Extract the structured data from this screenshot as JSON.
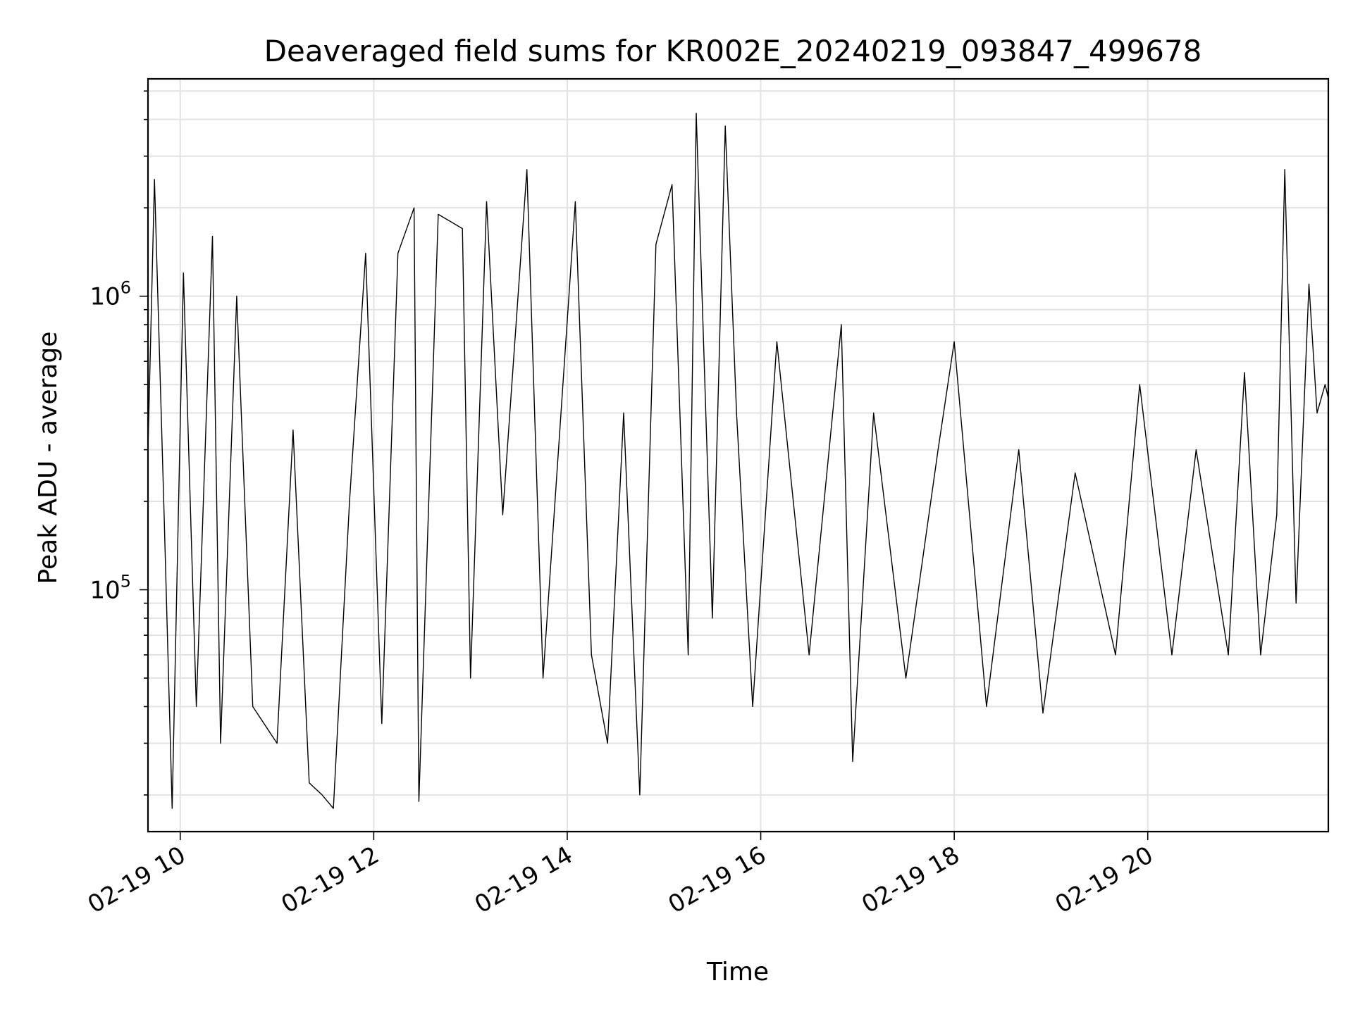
{
  "chart_data": {
    "type": "line",
    "title": "Deaveraged field sums for KR002E_20240219_093847_499678",
    "xlabel": "Time",
    "ylabel": "Peak ADU - average",
    "x_range": [
      "2024-02-19 09:40",
      "2024-02-19 21:52"
    ],
    "y_range": [
      15000,
      5500000
    ],
    "y_scale": "log",
    "grid": true,
    "line_color": "#000000",
    "x_ticks": [
      {
        "value": "2024-02-19 10:00",
        "label": "02-19 10"
      },
      {
        "value": "2024-02-19 12:00",
        "label": "02-19 12"
      },
      {
        "value": "2024-02-19 14:00",
        "label": "02-19 14"
      },
      {
        "value": "2024-02-19 16:00",
        "label": "02-19 16"
      },
      {
        "value": "2024-02-19 18:00",
        "label": "02-19 18"
      },
      {
        "value": "2024-02-19 20:00",
        "label": "02-19 20"
      }
    ],
    "y_ticks": [
      {
        "value": 100000,
        "base": "10",
        "exp": "5"
      },
      {
        "value": 1000000,
        "base": "10",
        "exp": "6"
      }
    ],
    "series": [
      {
        "points": [
          [
            "2024-02-19 09:40",
            300000
          ],
          [
            "2024-02-19 09:44",
            2500000
          ],
          [
            "2024-02-19 09:50",
            180000
          ],
          [
            "2024-02-19 09:55",
            18000
          ],
          [
            "2024-02-19 10:02",
            1200000
          ],
          [
            "2024-02-19 10:10",
            40000
          ],
          [
            "2024-02-19 10:20",
            1600000
          ],
          [
            "2024-02-19 10:25",
            30000
          ],
          [
            "2024-02-19 10:35",
            1000000
          ],
          [
            "2024-02-19 10:45",
            40000
          ],
          [
            "2024-02-19 11:00",
            30000
          ],
          [
            "2024-02-19 11:10",
            350000
          ],
          [
            "2024-02-19 11:20",
            22000
          ],
          [
            "2024-02-19 11:28",
            20000
          ],
          [
            "2024-02-19 11:35",
            18000
          ],
          [
            "2024-02-19 11:45",
            200000
          ],
          [
            "2024-02-19 11:55",
            1400000
          ],
          [
            "2024-02-19 12:05",
            35000
          ],
          [
            "2024-02-19 12:15",
            1400000
          ],
          [
            "2024-02-19 12:25",
            2000000
          ],
          [
            "2024-02-19 12:28",
            19000
          ],
          [
            "2024-02-19 12:40",
            1900000
          ],
          [
            "2024-02-19 12:55",
            1700000
          ],
          [
            "2024-02-19 13:00",
            50000
          ],
          [
            "2024-02-19 13:10",
            2100000
          ],
          [
            "2024-02-19 13:20",
            180000
          ],
          [
            "2024-02-19 13:35",
            2700000
          ],
          [
            "2024-02-19 13:45",
            50000
          ],
          [
            "2024-02-19 14:05",
            2100000
          ],
          [
            "2024-02-19 14:15",
            60000
          ],
          [
            "2024-02-19 14:25",
            30000
          ],
          [
            "2024-02-19 14:35",
            400000
          ],
          [
            "2024-02-19 14:45",
            20000
          ],
          [
            "2024-02-19 14:55",
            1500000
          ],
          [
            "2024-02-19 15:05",
            2400000
          ],
          [
            "2024-02-19 15:15",
            60000
          ],
          [
            "2024-02-19 15:20",
            4200000
          ],
          [
            "2024-02-19 15:30",
            80000
          ],
          [
            "2024-02-19 15:38",
            3800000
          ],
          [
            "2024-02-19 15:45",
            400000
          ],
          [
            "2024-02-19 15:55",
            40000
          ],
          [
            "2024-02-19 16:10",
            700000
          ],
          [
            "2024-02-19 16:30",
            60000
          ],
          [
            "2024-02-19 16:50",
            800000
          ],
          [
            "2024-02-19 16:57",
            26000
          ],
          [
            "2024-02-19 17:10",
            400000
          ],
          [
            "2024-02-19 17:30",
            50000
          ],
          [
            "2024-02-19 17:50",
            300000
          ],
          [
            "2024-02-19 18:00",
            700000
          ],
          [
            "2024-02-19 18:20",
            40000
          ],
          [
            "2024-02-19 18:40",
            300000
          ],
          [
            "2024-02-19 18:55",
            38000
          ],
          [
            "2024-02-19 19:15",
            250000
          ],
          [
            "2024-02-19 19:40",
            60000
          ],
          [
            "2024-02-19 19:55",
            500000
          ],
          [
            "2024-02-19 20:15",
            60000
          ],
          [
            "2024-02-19 20:30",
            300000
          ],
          [
            "2024-02-19 20:50",
            60000
          ],
          [
            "2024-02-19 21:00",
            550000
          ],
          [
            "2024-02-19 21:10",
            60000
          ],
          [
            "2024-02-19 21:20",
            180000
          ],
          [
            "2024-02-19 21:25",
            2700000
          ],
          [
            "2024-02-19 21:32",
            90000
          ],
          [
            "2024-02-19 21:40",
            1100000
          ],
          [
            "2024-02-19 21:45",
            400000
          ],
          [
            "2024-02-19 21:50",
            500000
          ],
          [
            "2024-02-19 21:52",
            450000
          ]
        ]
      }
    ]
  }
}
